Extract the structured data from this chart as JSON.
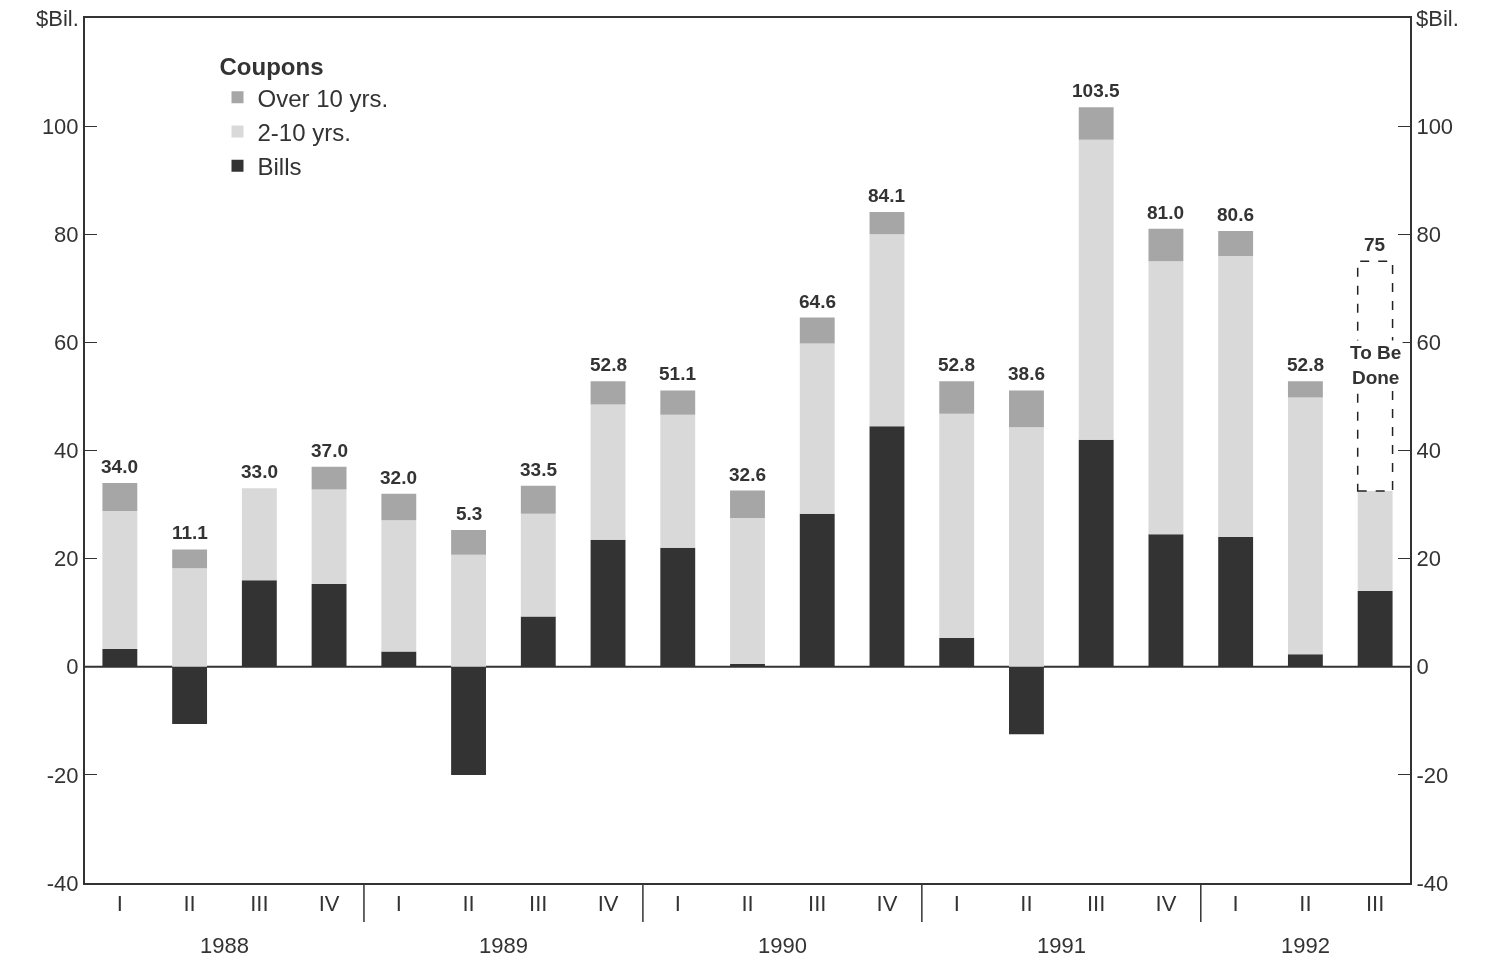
{
  "chart_data": {
    "type": "bar",
    "stacked": true,
    "categories": [
      "I",
      "II",
      "III",
      "IV",
      "I",
      "II",
      "III",
      "IV",
      "I",
      "II",
      "III",
      "IV",
      "I",
      "II",
      "III",
      "IV",
      "I",
      "II",
      "III"
    ],
    "annotations": [
      "1988",
      "1989",
      "1990",
      "1991",
      "1992"
    ],
    "ylabel": "$Bil.",
    "y2label": "$Bil.",
    "legend_title": "Coupons",
    "ylim": [
      -40,
      120
    ],
    "yticks": [
      -40,
      -20,
      0,
      20,
      40,
      60,
      80,
      100
    ],
    "y2lim": [
      -40,
      120
    ],
    "y2ticks": [
      -40,
      -20,
      0,
      20,
      40,
      60,
      80,
      100
    ],
    "series": [
      {
        "name": "Bills",
        "color": "#333333",
        "values": [
          3.3,
          -10.6,
          16,
          15.3,
          2.8,
          -20,
          9.3,
          23.5,
          22,
          0.5,
          28.3,
          44.5,
          5.3,
          -12.5,
          42,
          24.5,
          24,
          2.3,
          14
        ]
      },
      {
        "name": "2-10 yrs.",
        "color": "#d9d9d9",
        "values": [
          25.5,
          18.2,
          17,
          17.5,
          24.3,
          20.7,
          19,
          25,
          24.6,
          27,
          31.5,
          35.5,
          41.5,
          44.3,
          55.5,
          50.5,
          52,
          47.5,
          18.5
        ]
      },
      {
        "name": "Over 10 yrs.",
        "color": "#a6a6a6",
        "values": [
          5.2,
          3.5,
          null,
          4.2,
          4.9,
          4.6,
          5.2,
          4.3,
          4.5,
          5.1,
          4.8,
          4.1,
          6,
          6.8,
          6,
          6,
          4.6,
          3,
          null
        ]
      },
      {
        "name": "To Be Done",
        "color": "#ffffff",
        "line_style": "dashed",
        "values": [
          null,
          null,
          null,
          null,
          null,
          null,
          null,
          null,
          null,
          null,
          null,
          null,
          null,
          null,
          null,
          null,
          null,
          null,
          42.5
        ]
      }
    ],
    "totals": [
      "34.0",
      "11.1",
      "33.0",
      "37.0",
      "32.0",
      "5.3",
      "33.5",
      "52.8",
      "51.1",
      "32.6",
      "64.6",
      "84.1",
      "52.8",
      "38.6",
      "103.5",
      "81.0",
      "80.6",
      "52.8",
      "75"
    ],
    "ref_lines": [
      {
        "axis": "y",
        "value": 0,
        "color": "#333333"
      }
    ],
    "legend": "top left"
  }
}
